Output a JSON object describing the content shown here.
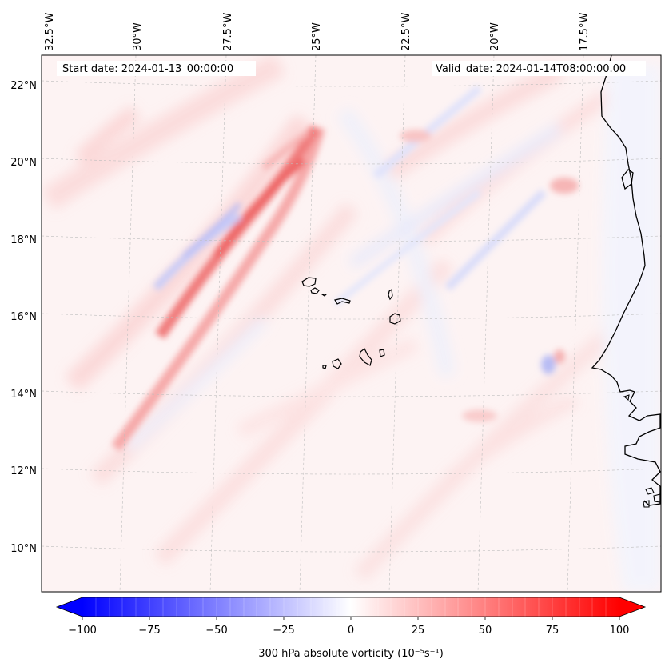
{
  "map": {
    "start_label": "Start date: 2024-01-13_00:00:00",
    "valid_label": "Valid_date: 2024-01-14T08:00:00.00",
    "lon_labels": [
      "32.5°W",
      "30°W",
      "27.5°W",
      "25°W",
      "22.5°W",
      "20°W",
      "17.5°W"
    ],
    "lat_labels": [
      "22°N",
      "20°N",
      "18°N",
      "16°N",
      "14°N",
      "12°N",
      "10°N"
    ],
    "features": [
      "Cape Verde islands",
      "West African coastline"
    ],
    "colormap": "bwr",
    "colors": {
      "negative": "#0000ff",
      "zero": "#ffffff",
      "positive": "#ff0000",
      "coast": "#000000"
    }
  },
  "colorbar": {
    "ticks": [
      "−100",
      "−75",
      "−50",
      "−25",
      "0",
      "25",
      "50",
      "75",
      "100"
    ],
    "range": [
      -100,
      100
    ],
    "label": "300 hPa absolute vorticity (10⁻⁵s⁻¹)"
  }
}
